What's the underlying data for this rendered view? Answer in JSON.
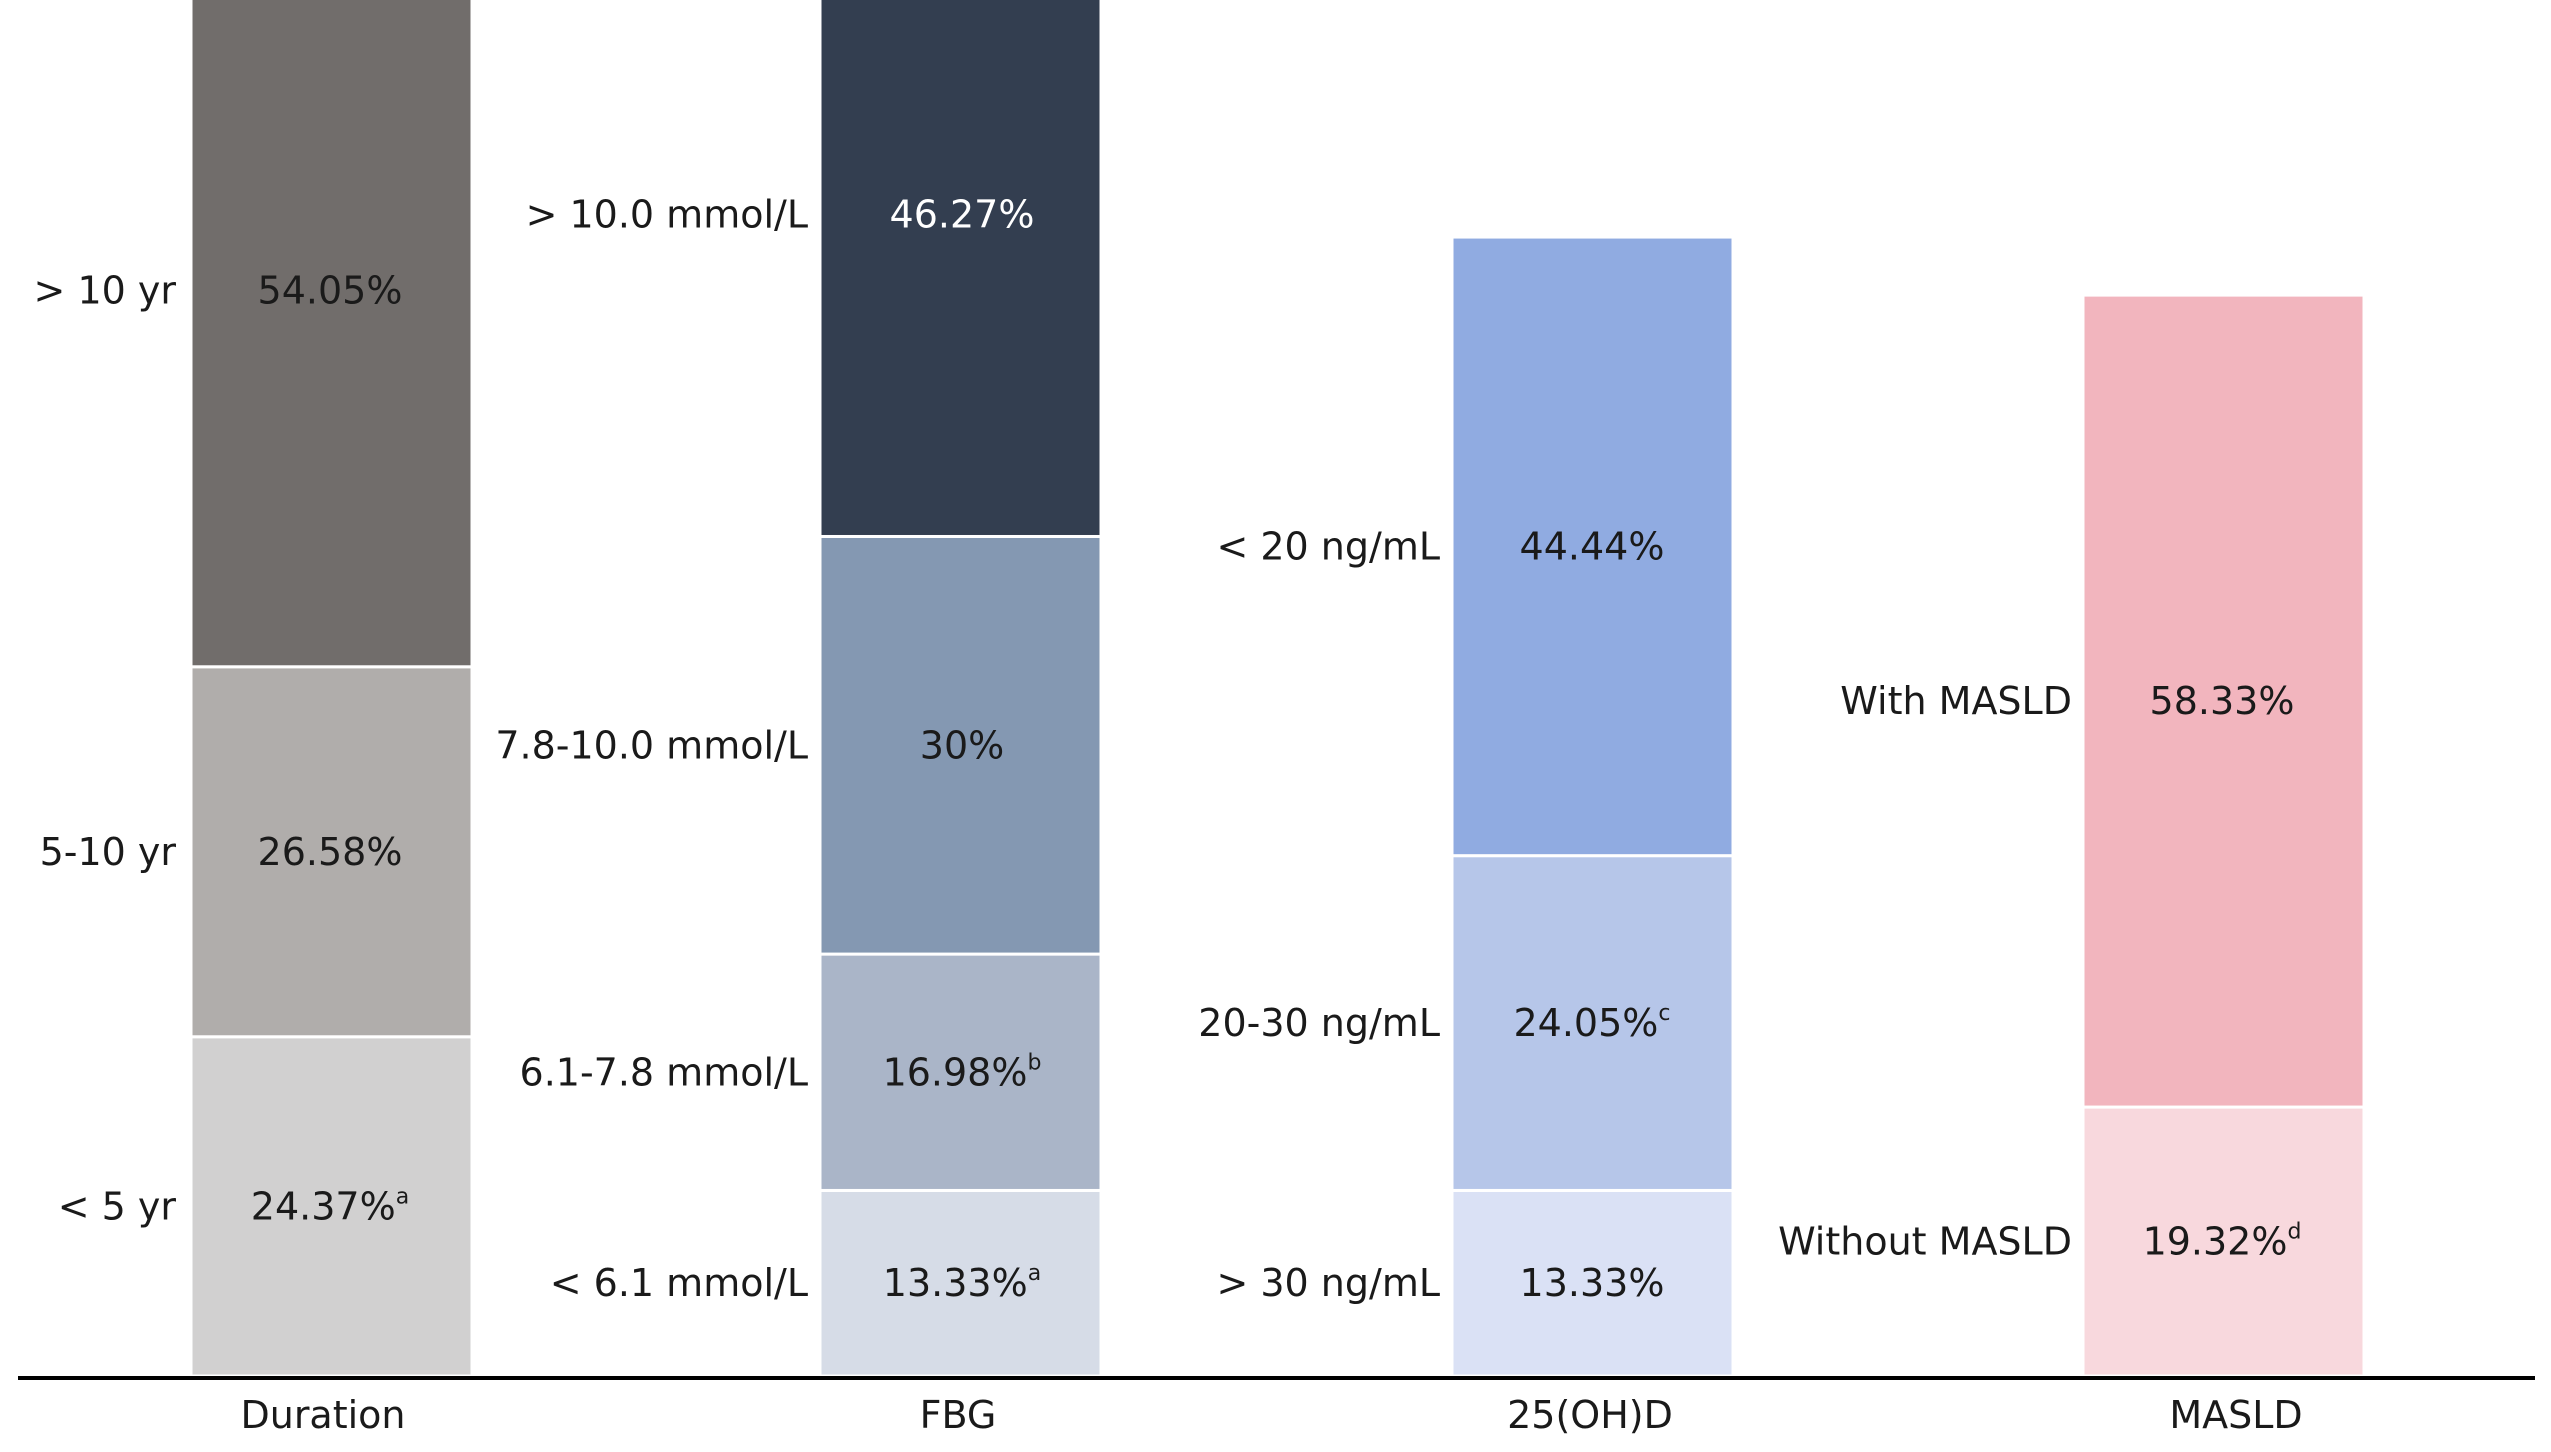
{
  "chart_data": {
    "type": "bar",
    "stacked": true,
    "categories": [
      "Duration",
      "FBG",
      "25(OH)D",
      "MASLD"
    ],
    "bars": [
      {
        "category": "Duration",
        "segments": [
          {
            "label": "< 5 yr",
            "value": 24.37,
            "display": "24.37%",
            "sup": "a",
            "color": "#d1d0d0"
          },
          {
            "label": "5-10 yr",
            "value": 26.58,
            "display": "26.58%",
            "sup": "",
            "color": "#b0adab"
          },
          {
            "label": "> 10 yr",
            "value": 54.05,
            "display": "54.05%",
            "sup": "",
            "color": "#716d6b"
          }
        ]
      },
      {
        "category": "FBG",
        "segments": [
          {
            "label": "< 6.1 mmol/L",
            "value": 13.33,
            "display": "13.33%",
            "sup": "a",
            "color": "#d6dce7"
          },
          {
            "label": "6.1-7.8 mmol/L",
            "value": 16.98,
            "display": "16.98%",
            "sup": "b",
            "color": "#aab5c8"
          },
          {
            "label": "7.8-10.0 mmol/L",
            "value": 30,
            "display": "30%",
            "sup": "",
            "color": "#8498b2"
          },
          {
            "label": "> 10.0 mmol/L",
            "value": 46.27,
            "display": "46.27%",
            "sup": "",
            "color": "#333e50"
          }
        ]
      },
      {
        "category": "25(OH)D",
        "segments": [
          {
            "label": "> 30 ng/mL",
            "value": 13.33,
            "display": "13.33%",
            "sup": "",
            "color": "#dae1f5"
          },
          {
            "label": "20-30 ng/mL",
            "value": 24.05,
            "display": "24.05%",
            "sup": "c",
            "color": "#b6c6e9"
          },
          {
            "label": "< 20 ng/mL",
            "value": 44.44,
            "display": "44.44%",
            "sup": "",
            "color": "#90abe1"
          }
        ]
      },
      {
        "category": "MASLD",
        "segments": [
          {
            "label": "Without MASLD",
            "value": 19.32,
            "display": "19.32%",
            "sup": "d",
            "color": "#f8d8dd"
          },
          {
            "label": "With MASLD",
            "value": 58.33,
            "display": "58.33%",
            "sup": "",
            "color": "#f2b5be"
          }
        ]
      }
    ],
    "value_text_colors": {
      "dark_segment": "#ffffff",
      "default": "#1a1a1a"
    },
    "axis_color": "#000000"
  }
}
